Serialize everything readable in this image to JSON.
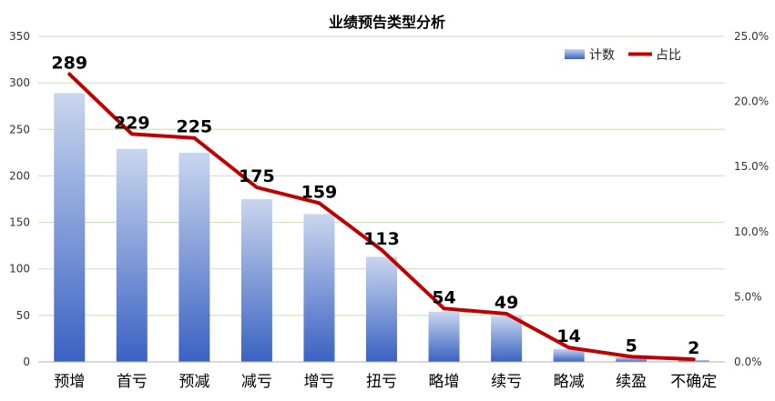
{
  "chart_data": {
    "type": "bar",
    "title": "业绩预告类型分析",
    "categories": [
      "预增",
      "首亏",
      "预减",
      "减亏",
      "增亏",
      "扭亏",
      "略增",
      "续亏",
      "略减",
      "续盈",
      "不确定"
    ],
    "series": [
      {
        "name": "计数",
        "type": "bar",
        "axis": "left",
        "values": [
          289,
          229,
          225,
          175,
          159,
          113,
          54,
          49,
          14,
          5,
          2
        ],
        "color_top": "#c9d6ee",
        "color_bottom": "#3a62c3"
      },
      {
        "name": "占比",
        "type": "line",
        "axis": "right",
        "values": [
          22.1,
          17.5,
          17.2,
          13.4,
          12.2,
          8.6,
          4.1,
          3.7,
          1.1,
          0.4,
          0.2
        ],
        "color": "#c00000"
      }
    ],
    "y_left": {
      "min": 0,
      "max": 350,
      "ticks": [
        "0",
        "50",
        "100",
        "150",
        "200",
        "250",
        "300",
        "350"
      ]
    },
    "y_right": {
      "min": 0,
      "max": 25,
      "ticks": [
        "0.0%",
        "5.0%",
        "10.0%",
        "15.0%",
        "20.0%",
        "25.0%"
      ]
    },
    "data_labels": [
      "289",
      "229",
      "225",
      "175",
      "159",
      "113",
      "54",
      "49",
      "14",
      "5",
      "2"
    ],
    "grid": true,
    "legend_position": "top-right",
    "xlabel": "",
    "ylabel": ""
  }
}
